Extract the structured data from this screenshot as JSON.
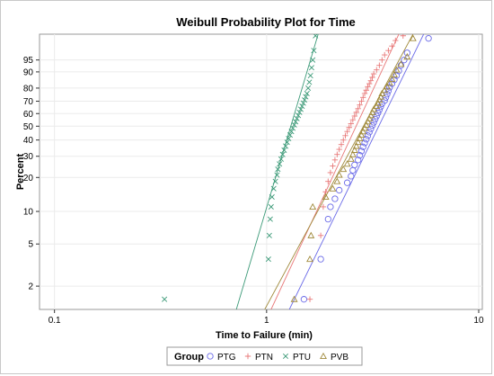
{
  "chart_data": {
    "type": "scatter",
    "title": "Weibull Probability Plot for Time",
    "xlabel": "Time to Failure (min)",
    "ylabel": "Percent",
    "x_scale": "log",
    "y_scale": "weibull",
    "xlim": [
      0.085,
      10.4
    ],
    "ylim": [
      1.2,
      99.5
    ],
    "x_ticks": [
      0.1,
      1,
      10
    ],
    "x_tick_labels": [
      "0.1",
      "1",
      "10"
    ],
    "y_ticks": [
      2,
      5,
      10,
      20,
      30,
      40,
      50,
      60,
      70,
      80,
      90,
      95
    ],
    "y_tick_labels": [
      "2",
      "5",
      "10",
      "20",
      "30",
      "40",
      "50",
      "60",
      "70",
      "80",
      "90",
      "95"
    ],
    "grid": true,
    "legend": {
      "title": "Group",
      "position": "bottom"
    },
    "series": [
      {
        "name": "PTG",
        "marker": "circle",
        "color": "#6a6ae8",
        "fit": {
          "x0": 1.28,
          "y0": 1.2,
          "x1": 5.5,
          "y1": 99.5
        },
        "x": [
          1.5,
          1.8,
          1.95,
          2.0,
          2.1,
          2.2,
          2.4,
          2.5,
          2.55,
          2.6,
          2.7,
          2.75,
          2.8,
          2.85,
          2.9,
          2.95,
          3.0,
          3.05,
          3.1,
          3.15,
          3.2,
          3.25,
          3.3,
          3.35,
          3.4,
          3.45,
          3.5,
          3.6,
          3.65,
          3.7,
          3.75,
          3.8,
          3.9,
          4.0,
          4.1,
          4.2,
          4.3,
          4.45,
          4.6,
          5.8
        ],
        "y": [
          1.5,
          3.6,
          8.5,
          11.0,
          13.0,
          15.5,
          18.0,
          20.5,
          23.0,
          25.5,
          28.0,
          30.5,
          33.0,
          35.5,
          38.0,
          40.5,
          43.0,
          45.5,
          48.0,
          50.5,
          53.0,
          55.5,
          58.0,
          60.5,
          63.0,
          65.5,
          68.0,
          70.5,
          73.0,
          75.5,
          78.0,
          80.5,
          83.0,
          85.5,
          88.0,
          90.5,
          93.0,
          95.0,
          97.0,
          99.2
        ]
      },
      {
        "name": "PTN",
        "marker": "plus",
        "color": "#e87878",
        "fit": {
          "x0": 1.05,
          "y0": 1.2,
          "x1": 4.2,
          "y1": 99.5
        },
        "x": [
          1.6,
          1.8,
          1.85,
          1.9,
          1.95,
          2.0,
          2.05,
          2.1,
          2.15,
          2.2,
          2.25,
          2.3,
          2.35,
          2.4,
          2.45,
          2.5,
          2.55,
          2.6,
          2.65,
          2.7,
          2.75,
          2.8,
          2.85,
          2.9,
          2.95,
          3.0,
          3.05,
          3.1,
          3.15,
          3.2,
          3.3,
          3.4,
          3.5,
          3.6,
          3.75,
          3.9,
          4.05,
          4.4
        ],
        "y": [
          1.5,
          6.0,
          11.0,
          15.0,
          18.5,
          22.0,
          25.0,
          28.0,
          31.0,
          34.0,
          37.0,
          40.0,
          43.0,
          46.0,
          49.0,
          52.0,
          55.0,
          58.0,
          61.0,
          64.0,
          67.0,
          70.0,
          73.0,
          76.0,
          78.5,
          81.0,
          83.0,
          85.0,
          87.0,
          89.0,
          91.0,
          93.0,
          95.0,
          96.5,
          97.5,
          98.3,
          99.0,
          99.4
        ]
      },
      {
        "name": "PTU",
        "marker": "x",
        "color": "#3c9a78",
        "fit": {
          "x0": 0.72,
          "y0": 1.2,
          "x1": 1.75,
          "y1": 99.5
        },
        "x": [
          0.33,
          1.02,
          1.03,
          1.04,
          1.05,
          1.06,
          1.08,
          1.1,
          1.12,
          1.13,
          1.15,
          1.17,
          1.19,
          1.21,
          1.23,
          1.25,
          1.27,
          1.29,
          1.31,
          1.33,
          1.35,
          1.37,
          1.39,
          1.41,
          1.43,
          1.45,
          1.47,
          1.49,
          1.51,
          1.53,
          1.55,
          1.57,
          1.59,
          1.61,
          1.63,
          1.65,
          1.67,
          1.7
        ],
        "y": [
          1.5,
          3.6,
          6.0,
          8.5,
          11.0,
          13.5,
          16.0,
          18.5,
          21.0,
          23.5,
          26.0,
          28.5,
          31.0,
          33.5,
          36.0,
          38.5,
          41.0,
          43.5,
          46.0,
          48.5,
          51.0,
          53.5,
          56.0,
          58.5,
          61.0,
          63.5,
          66.0,
          68.5,
          71.0,
          73.5,
          76.0,
          80.0,
          84.0,
          88.0,
          92.0,
          95.0,
          97.5,
          99.4
        ]
      },
      {
        "name": "PVB",
        "marker": "triangle",
        "color": "#a08a3c",
        "fit": {
          "x0": 0.98,
          "y0": 1.2,
          "x1": 4.9,
          "y1": 99.5
        },
        "x": [
          1.35,
          1.6,
          1.62,
          1.65,
          1.9,
          2.05,
          2.15,
          2.2,
          2.3,
          2.4,
          2.5,
          2.55,
          2.6,
          2.65,
          2.7,
          2.75,
          2.8,
          2.85,
          2.9,
          2.95,
          3.0,
          3.05,
          3.1,
          3.15,
          3.2,
          3.3,
          3.35,
          3.4,
          3.45,
          3.5,
          3.6,
          3.7,
          3.8,
          3.9,
          4.0,
          4.1,
          4.3,
          4.6,
          4.9
        ],
        "y": [
          1.5,
          3.6,
          6.0,
          11.0,
          13.5,
          16.0,
          18.5,
          21.0,
          23.5,
          26.0,
          28.5,
          31.0,
          33.5,
          36.0,
          38.5,
          41.0,
          43.5,
          46.0,
          48.5,
          51.0,
          53.5,
          56.0,
          58.5,
          61.0,
          63.5,
          66.0,
          68.5,
          71.0,
          73.5,
          76.0,
          78.5,
          81.0,
          83.5,
          86.0,
          88.5,
          91.0,
          93.5,
          96.0,
          99.2
        ]
      }
    ]
  }
}
